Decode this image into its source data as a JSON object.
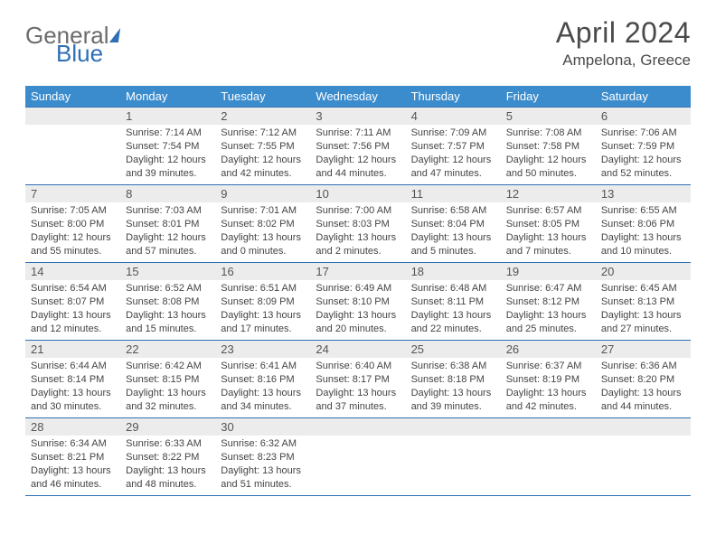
{
  "logo": {
    "general": "General",
    "blue": "Blue"
  },
  "title": "April 2024",
  "location": "Ampelona, Greece",
  "colors": {
    "header_bg": "#3b8ccd",
    "border": "#2f6fb5",
    "daynum_bg": "#ececec",
    "text": "#444444",
    "title_text": "#4a4a4a"
  },
  "day_headers": [
    "Sunday",
    "Monday",
    "Tuesday",
    "Wednesday",
    "Thursday",
    "Friday",
    "Saturday"
  ],
  "weeks": [
    [
      null,
      {
        "n": "1",
        "sr": "Sunrise: 7:14 AM",
        "ss": "Sunset: 7:54 PM",
        "d1": "Daylight: 12 hours",
        "d2": "and 39 minutes."
      },
      {
        "n": "2",
        "sr": "Sunrise: 7:12 AM",
        "ss": "Sunset: 7:55 PM",
        "d1": "Daylight: 12 hours",
        "d2": "and 42 minutes."
      },
      {
        "n": "3",
        "sr": "Sunrise: 7:11 AM",
        "ss": "Sunset: 7:56 PM",
        "d1": "Daylight: 12 hours",
        "d2": "and 44 minutes."
      },
      {
        "n": "4",
        "sr": "Sunrise: 7:09 AM",
        "ss": "Sunset: 7:57 PM",
        "d1": "Daylight: 12 hours",
        "d2": "and 47 minutes."
      },
      {
        "n": "5",
        "sr": "Sunrise: 7:08 AM",
        "ss": "Sunset: 7:58 PM",
        "d1": "Daylight: 12 hours",
        "d2": "and 50 minutes."
      },
      {
        "n": "6",
        "sr": "Sunrise: 7:06 AM",
        "ss": "Sunset: 7:59 PM",
        "d1": "Daylight: 12 hours",
        "d2": "and 52 minutes."
      }
    ],
    [
      {
        "n": "7",
        "sr": "Sunrise: 7:05 AM",
        "ss": "Sunset: 8:00 PM",
        "d1": "Daylight: 12 hours",
        "d2": "and 55 minutes."
      },
      {
        "n": "8",
        "sr": "Sunrise: 7:03 AM",
        "ss": "Sunset: 8:01 PM",
        "d1": "Daylight: 12 hours",
        "d2": "and 57 minutes."
      },
      {
        "n": "9",
        "sr": "Sunrise: 7:01 AM",
        "ss": "Sunset: 8:02 PM",
        "d1": "Daylight: 13 hours",
        "d2": "and 0 minutes."
      },
      {
        "n": "10",
        "sr": "Sunrise: 7:00 AM",
        "ss": "Sunset: 8:03 PM",
        "d1": "Daylight: 13 hours",
        "d2": "and 2 minutes."
      },
      {
        "n": "11",
        "sr": "Sunrise: 6:58 AM",
        "ss": "Sunset: 8:04 PM",
        "d1": "Daylight: 13 hours",
        "d2": "and 5 minutes."
      },
      {
        "n": "12",
        "sr": "Sunrise: 6:57 AM",
        "ss": "Sunset: 8:05 PM",
        "d1": "Daylight: 13 hours",
        "d2": "and 7 minutes."
      },
      {
        "n": "13",
        "sr": "Sunrise: 6:55 AM",
        "ss": "Sunset: 8:06 PM",
        "d1": "Daylight: 13 hours",
        "d2": "and 10 minutes."
      }
    ],
    [
      {
        "n": "14",
        "sr": "Sunrise: 6:54 AM",
        "ss": "Sunset: 8:07 PM",
        "d1": "Daylight: 13 hours",
        "d2": "and 12 minutes."
      },
      {
        "n": "15",
        "sr": "Sunrise: 6:52 AM",
        "ss": "Sunset: 8:08 PM",
        "d1": "Daylight: 13 hours",
        "d2": "and 15 minutes."
      },
      {
        "n": "16",
        "sr": "Sunrise: 6:51 AM",
        "ss": "Sunset: 8:09 PM",
        "d1": "Daylight: 13 hours",
        "d2": "and 17 minutes."
      },
      {
        "n": "17",
        "sr": "Sunrise: 6:49 AM",
        "ss": "Sunset: 8:10 PM",
        "d1": "Daylight: 13 hours",
        "d2": "and 20 minutes."
      },
      {
        "n": "18",
        "sr": "Sunrise: 6:48 AM",
        "ss": "Sunset: 8:11 PM",
        "d1": "Daylight: 13 hours",
        "d2": "and 22 minutes."
      },
      {
        "n": "19",
        "sr": "Sunrise: 6:47 AM",
        "ss": "Sunset: 8:12 PM",
        "d1": "Daylight: 13 hours",
        "d2": "and 25 minutes."
      },
      {
        "n": "20",
        "sr": "Sunrise: 6:45 AM",
        "ss": "Sunset: 8:13 PM",
        "d1": "Daylight: 13 hours",
        "d2": "and 27 minutes."
      }
    ],
    [
      {
        "n": "21",
        "sr": "Sunrise: 6:44 AM",
        "ss": "Sunset: 8:14 PM",
        "d1": "Daylight: 13 hours",
        "d2": "and 30 minutes."
      },
      {
        "n": "22",
        "sr": "Sunrise: 6:42 AM",
        "ss": "Sunset: 8:15 PM",
        "d1": "Daylight: 13 hours",
        "d2": "and 32 minutes."
      },
      {
        "n": "23",
        "sr": "Sunrise: 6:41 AM",
        "ss": "Sunset: 8:16 PM",
        "d1": "Daylight: 13 hours",
        "d2": "and 34 minutes."
      },
      {
        "n": "24",
        "sr": "Sunrise: 6:40 AM",
        "ss": "Sunset: 8:17 PM",
        "d1": "Daylight: 13 hours",
        "d2": "and 37 minutes."
      },
      {
        "n": "25",
        "sr": "Sunrise: 6:38 AM",
        "ss": "Sunset: 8:18 PM",
        "d1": "Daylight: 13 hours",
        "d2": "and 39 minutes."
      },
      {
        "n": "26",
        "sr": "Sunrise: 6:37 AM",
        "ss": "Sunset: 8:19 PM",
        "d1": "Daylight: 13 hours",
        "d2": "and 42 minutes."
      },
      {
        "n": "27",
        "sr": "Sunrise: 6:36 AM",
        "ss": "Sunset: 8:20 PM",
        "d1": "Daylight: 13 hours",
        "d2": "and 44 minutes."
      }
    ],
    [
      {
        "n": "28",
        "sr": "Sunrise: 6:34 AM",
        "ss": "Sunset: 8:21 PM",
        "d1": "Daylight: 13 hours",
        "d2": "and 46 minutes."
      },
      {
        "n": "29",
        "sr": "Sunrise: 6:33 AM",
        "ss": "Sunset: 8:22 PM",
        "d1": "Daylight: 13 hours",
        "d2": "and 48 minutes."
      },
      {
        "n": "30",
        "sr": "Sunrise: 6:32 AM",
        "ss": "Sunset: 8:23 PM",
        "d1": "Daylight: 13 hours",
        "d2": "and 51 minutes."
      },
      null,
      null,
      null,
      null
    ]
  ]
}
